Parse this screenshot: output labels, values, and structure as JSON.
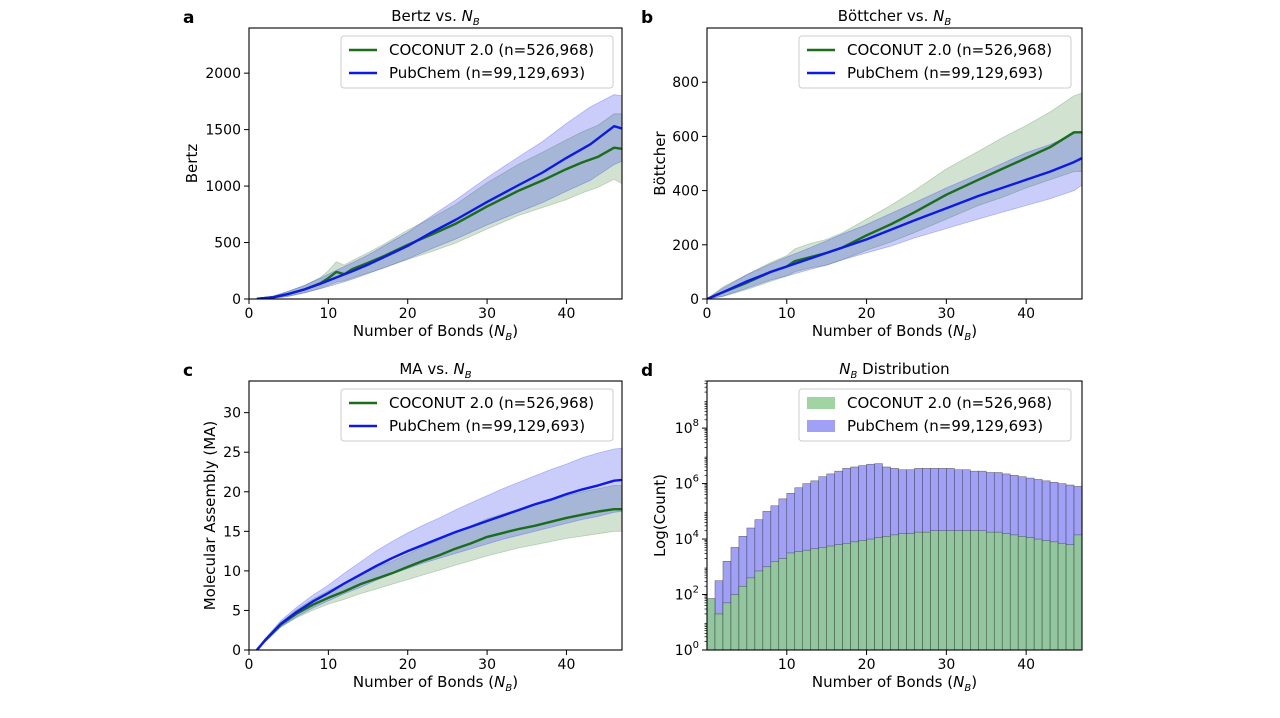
{
  "chart_data": [
    {
      "id": "a",
      "panel_label": "a",
      "type": "line",
      "title_main": "Bertz vs. ",
      "title_sym": "N",
      "title_sub": "B",
      "title_tail": "",
      "xlabel_main": "Number of Bonds (",
      "xlabel_sym": "N",
      "xlabel_sub": "B",
      "xlabel_tail": ")",
      "ylabel": "Bertz",
      "xlim": [
        0,
        47
      ],
      "ylim": [
        0,
        2400
      ],
      "xticks": [
        0,
        10,
        20,
        30,
        40
      ],
      "yticks": [
        0,
        500,
        1000,
        1500,
        2000
      ],
      "legend": [
        "COCONUT 2.0 (n=526,968)",
        "PubChem (n=99,129,693)"
      ],
      "series": [
        {
          "name": "COCONUT 2.0 (n=526,968)",
          "color": "#1a6e1a",
          "x": [
            1,
            3,
            5,
            7,
            9,
            10,
            11,
            12,
            13,
            15,
            17,
            20,
            23,
            26,
            30,
            34,
            37,
            40,
            42,
            44,
            46,
            47
          ],
          "y": [
            2,
            15,
            45,
            85,
            140,
            185,
            240,
            220,
            265,
            320,
            380,
            480,
            570,
            665,
            820,
            960,
            1050,
            1150,
            1210,
            1260,
            1340,
            1330
          ],
          "lower": [
            0,
            5,
            25,
            55,
            95,
            120,
            150,
            160,
            185,
            230,
            275,
            350,
            420,
            495,
            620,
            740,
            810,
            880,
            940,
            990,
            1060,
            1020
          ],
          "upper": [
            5,
            25,
            70,
            120,
            190,
            250,
            330,
            300,
            340,
            410,
            485,
            610,
            720,
            835,
            1030,
            1195,
            1300,
            1410,
            1480,
            1540,
            1640,
            1640
          ]
        },
        {
          "name": "PubChem (n=99,129,693)",
          "color": "#0d1ae6",
          "x": [
            1,
            3,
            5,
            7,
            9,
            11,
            13,
            15,
            17,
            20,
            23,
            26,
            30,
            34,
            37,
            40,
            43,
            46,
            47
          ],
          "y": [
            2,
            15,
            45,
            85,
            135,
            190,
            245,
            305,
            370,
            470,
            590,
            700,
            860,
            1010,
            1120,
            1250,
            1370,
            1530,
            1510
          ],
          "lower": [
            0,
            5,
            25,
            55,
            90,
            130,
            175,
            225,
            275,
            355,
            445,
            530,
            655,
            770,
            855,
            955,
            1050,
            1190,
            1220
          ],
          "upper": [
            5,
            25,
            70,
            120,
            185,
            255,
            320,
            390,
            470,
            590,
            735,
            875,
            1075,
            1260,
            1395,
            1555,
            1700,
            1810,
            1800
          ]
        }
      ]
    },
    {
      "id": "b",
      "panel_label": "b",
      "type": "line",
      "title_main": "Böttcher vs. ",
      "title_sym": "N",
      "title_sub": "B",
      "title_tail": "",
      "xlabel_main": "Number of Bonds (",
      "xlabel_sym": "N",
      "xlabel_sub": "B",
      "xlabel_tail": ")",
      "ylabel": "Böttcher",
      "xlim": [
        0,
        47
      ],
      "ylim": [
        0,
        1000
      ],
      "xticks": [
        0,
        10,
        20,
        30,
        40
      ],
      "yticks": [
        0,
        200,
        400,
        600,
        800
      ],
      "legend": [
        "COCONUT 2.0 (n=526,968)",
        "PubChem (n=99,129,693)"
      ],
      "series": [
        {
          "name": "COCONUT 2.0 (n=526,968)",
          "color": "#1a6e1a",
          "x": [
            0,
            2,
            5,
            8,
            10,
            11,
            13,
            15,
            17,
            20,
            23,
            26,
            30,
            34,
            37,
            40,
            43,
            46,
            47
          ],
          "y": [
            0,
            25,
            60,
            100,
            120,
            140,
            155,
            170,
            190,
            235,
            275,
            320,
            385,
            440,
            480,
            520,
            560,
            615,
            615
          ],
          "lower": [
            0,
            10,
            35,
            65,
            85,
            100,
            115,
            125,
            145,
            180,
            210,
            245,
            295,
            345,
            375,
            410,
            440,
            470,
            470
          ],
          "upper": [
            0,
            45,
            90,
            135,
            160,
            185,
            205,
            220,
            245,
            295,
            345,
            400,
            480,
            545,
            595,
            640,
            690,
            750,
            760
          ]
        },
        {
          "name": "PubChem (n=99,129,693)",
          "color": "#0d1ae6",
          "x": [
            0,
            2,
            5,
            8,
            10,
            13,
            15,
            17,
            20,
            23,
            26,
            30,
            34,
            37,
            40,
            43,
            46,
            47
          ],
          "y": [
            0,
            25,
            65,
            100,
            120,
            150,
            170,
            190,
            220,
            255,
            290,
            335,
            380,
            410,
            440,
            470,
            505,
            520
          ],
          "lower": [
            0,
            10,
            40,
            70,
            85,
            110,
            125,
            145,
            170,
            195,
            225,
            260,
            295,
            320,
            345,
            370,
            400,
            420
          ],
          "upper": [
            0,
            40,
            90,
            130,
            155,
            190,
            215,
            240,
            275,
            315,
            355,
            410,
            460,
            500,
            540,
            570,
            610,
            620
          ]
        }
      ]
    },
    {
      "id": "c",
      "panel_label": "c",
      "type": "line",
      "title_main": "MA vs. ",
      "title_sym": "N",
      "title_sub": "B",
      "title_tail": "",
      "xlabel_main": "Number of Bonds (",
      "xlabel_sym": "N",
      "xlabel_sub": "B",
      "xlabel_tail": ")",
      "ylabel": "Molecular Assembly (MA)",
      "xlim": [
        0,
        47
      ],
      "ylim": [
        0,
        34
      ],
      "xticks": [
        0,
        10,
        20,
        30,
        40
      ],
      "yticks": [
        0,
        5,
        10,
        15,
        20,
        25,
        30
      ],
      "legend": [
        "COCONUT 2.0 (n=526,968)",
        "PubChem (n=99,129,693)"
      ],
      "series": [
        {
          "name": "COCONUT 2.0 (n=526,968)",
          "color": "#1a6e1a",
          "x": [
            1,
            2,
            4,
            6,
            8,
            10,
            12,
            14,
            16,
            18,
            20,
            22,
            24,
            26,
            28,
            30,
            32,
            34,
            36,
            38,
            40,
            42,
            44,
            46,
            47
          ],
          "y": [
            0,
            1.2,
            3.2,
            4.6,
            5.7,
            6.6,
            7.4,
            8.3,
            9.0,
            9.7,
            10.5,
            11.3,
            12.0,
            12.8,
            13.5,
            14.3,
            14.8,
            15.3,
            15.7,
            16.2,
            16.7,
            17.1,
            17.5,
            17.8,
            17.8
          ],
          "lower": [
            0,
            1.0,
            2.9,
            4.1,
            5.0,
            5.8,
            6.4,
            7.1,
            7.7,
            8.3,
            8.9,
            9.5,
            10.1,
            10.7,
            11.3,
            11.9,
            12.4,
            12.9,
            13.3,
            13.7,
            14.1,
            14.4,
            14.7,
            15.0,
            15.0
          ],
          "upper": [
            0,
            1.4,
            3.5,
            5.1,
            6.4,
            7.5,
            8.5,
            9.5,
            10.4,
            11.2,
            12.1,
            13.1,
            13.9,
            14.9,
            15.7,
            16.6,
            17.2,
            17.8,
            18.3,
            18.9,
            19.5,
            20.0,
            20.4,
            20.8,
            20.8
          ]
        },
        {
          "name": "PubChem (n=99,129,693)",
          "color": "#0d1ae6",
          "x": [
            1,
            2,
            4,
            6,
            8,
            10,
            12,
            14,
            16,
            18,
            20,
            22,
            24,
            26,
            28,
            30,
            32,
            34,
            36,
            38,
            40,
            42,
            44,
            46,
            47
          ],
          "y": [
            0,
            1.2,
            3.3,
            4.8,
            6.1,
            7.2,
            8.4,
            9.5,
            10.6,
            11.6,
            12.5,
            13.3,
            14.1,
            14.9,
            15.6,
            16.3,
            17.0,
            17.7,
            18.4,
            19.0,
            19.7,
            20.3,
            20.8,
            21.4,
            21.5
          ],
          "lower": [
            0,
            1.0,
            2.9,
            4.2,
            5.3,
            6.2,
            7.1,
            7.9,
            8.8,
            9.6,
            10.3,
            11.0,
            11.6,
            12.2,
            12.8,
            13.4,
            14.0,
            14.5,
            15.0,
            15.5,
            16.0,
            16.5,
            16.9,
            17.4,
            17.5
          ],
          "upper": [
            0,
            1.4,
            3.7,
            5.4,
            6.9,
            8.2,
            9.7,
            11.1,
            12.5,
            13.7,
            14.8,
            15.8,
            16.7,
            17.7,
            18.6,
            19.5,
            20.4,
            21.2,
            22.0,
            22.8,
            23.5,
            24.3,
            24.9,
            25.4,
            25.5
          ]
        }
      ]
    },
    {
      "id": "d",
      "panel_label": "d",
      "type": "bar",
      "title_main": "",
      "title_sym": "N",
      "title_sub": "B",
      "title_tail": " Distribution",
      "xlabel_main": "Number of Bonds (",
      "xlabel_sym": "N",
      "xlabel_sub": "B",
      "xlabel_tail": ")",
      "ylabel": "Log(Count)",
      "xlim": [
        0,
        47
      ],
      "ylim_log10": [
        0,
        9.7
      ],
      "xticks": [
        10,
        20,
        30,
        40
      ],
      "yticks_exp": [
        0,
        2,
        4,
        6,
        8
      ],
      "ytick_base": "10",
      "legend": [
        "COCONUT 2.0 (n=526,968)",
        "PubChem (n=99,129,693)"
      ],
      "categories": [
        0,
        1,
        2,
        3,
        4,
        5,
        6,
        7,
        8,
        9,
        10,
        11,
        12,
        13,
        14,
        15,
        16,
        17,
        18,
        19,
        20,
        21,
        22,
        23,
        24,
        25,
        26,
        27,
        28,
        29,
        30,
        31,
        32,
        33,
        34,
        35,
        36,
        37,
        38,
        39,
        40,
        41,
        42,
        43,
        44,
        45,
        46
      ],
      "series": [
        {
          "name": "COCONUT 2.0 (n=526,968)",
          "color": "#8fcc8f",
          "log10_values": [
            1.85,
            1.3,
            1.7,
            2.0,
            2.3,
            2.6,
            2.85,
            3.0,
            3.2,
            3.3,
            3.5,
            3.55,
            3.6,
            3.65,
            3.7,
            3.75,
            3.8,
            3.85,
            3.9,
            3.95,
            4.0,
            4.05,
            4.1,
            4.15,
            4.2,
            4.2,
            4.25,
            4.25,
            4.3,
            4.3,
            4.3,
            4.3,
            4.3,
            4.3,
            4.3,
            4.25,
            4.25,
            4.2,
            4.15,
            4.1,
            4.05,
            4.0,
            3.95,
            3.9,
            3.85,
            3.8,
            4.15
          ]
        },
        {
          "name": "PubChem (n=99,129,693)",
          "color": "#8f8ff5",
          "log10_values": [
            1.85,
            2.5,
            3.2,
            3.7,
            4.1,
            4.4,
            4.7,
            5.0,
            5.2,
            5.45,
            5.65,
            5.85,
            6.0,
            6.1,
            6.25,
            6.35,
            6.45,
            6.55,
            6.6,
            6.65,
            6.7,
            6.72,
            6.6,
            6.55,
            6.5,
            6.5,
            6.55,
            6.55,
            6.55,
            6.55,
            6.55,
            6.5,
            6.5,
            6.45,
            6.45,
            6.4,
            6.4,
            6.35,
            6.3,
            6.25,
            6.2,
            6.15,
            6.1,
            6.05,
            6.0,
            5.95,
            5.9
          ]
        }
      ]
    }
  ]
}
